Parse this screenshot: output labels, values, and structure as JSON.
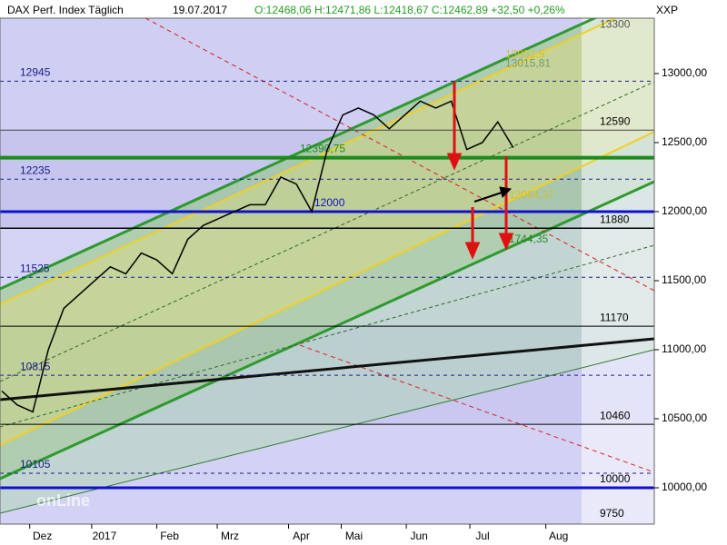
{
  "chart_data": {
    "type": "line",
    "title": "DAX Perf. Index Täglich",
    "date": "19.07.2017",
    "ohlc": "O:12468,06 H:12471,86 L:12418,67 C:12462,89 +32,50 +0,26%",
    "symbol": "XXP",
    "watermark": "onLine",
    "x": [
      0,
      1,
      2,
      3,
      4,
      5,
      6,
      7,
      8,
      9,
      10,
      11,
      12,
      13,
      14,
      15,
      16,
      17,
      18,
      19,
      20,
      21,
      22,
      23,
      24,
      25,
      26,
      27,
      28,
      29,
      30,
      31,
      32,
      33
    ],
    "series": [
      {
        "color": "#000000",
        "values": [
          10700,
          10600,
          10550,
          11000,
          11300,
          11400,
          11500,
          11600,
          11550,
          11700,
          11650,
          11550,
          11800,
          11900,
          11950,
          12000,
          12050,
          12050,
          12250,
          12200,
          12000,
          12450,
          12700,
          12750,
          12700,
          12600,
          12700,
          12800,
          12750,
          12800,
          12450,
          12500,
          12650,
          12462.89
        ]
      }
    ],
    "xlim": [
      0,
      42.1
    ],
    "xticks": [
      {
        "value": 1.8,
        "label": "Dez"
      },
      {
        "value": 5.8,
        "label": "2017"
      },
      {
        "value": 10,
        "label": "Feb"
      },
      {
        "value": 13.9,
        "label": "Mrz"
      },
      {
        "value": 18.5,
        "label": "Apr"
      },
      {
        "value": 21.9,
        "label": "Mai"
      },
      {
        "value": 26.1,
        "label": "Jun"
      },
      {
        "value": 30.2,
        "label": "Jul"
      },
      {
        "value": 35.1,
        "label": "Aug"
      }
    ],
    "ylim": [
      9737,
      13401
    ],
    "yticks": [
      {
        "value": 13000,
        "label": "13000,00"
      },
      {
        "value": 12500,
        "label": "12500,00"
      },
      {
        "value": 12000,
        "label": "12000,00"
      },
      {
        "value": 11500,
        "label": "11500,00"
      },
      {
        "value": 11000,
        "label": "11000,00"
      },
      {
        "value": 10500,
        "label": "10500,00"
      },
      {
        "value": 10000,
        "label": "10000,00"
      }
    ],
    "levels": [
      {
        "value": 12945,
        "label": "12945",
        "color": "#1a1a8c",
        "dash": true,
        "side": "left"
      },
      {
        "value": 12590,
        "label": "12590",
        "color": "#444444",
        "dash": false,
        "side": "right"
      },
      {
        "value": 12390.75,
        "label": "12390,75",
        "color": "#1e8a1e",
        "dash": false,
        "side": "mid",
        "width": 4
      },
      {
        "value": 12235,
        "label": "12235",
        "color": "#1a1a8c",
        "dash": true,
        "side": "left"
      },
      {
        "value": 12000,
        "label": "12000",
        "color": "#1010d0",
        "dash": false,
        "side": "mid",
        "width": 3
      },
      {
        "value": 11880,
        "label": "11880",
        "color": "#000000",
        "dash": false,
        "side": "right",
        "width": 1.5
      },
      {
        "value": 11525,
        "label": "11525",
        "color": "#1a1a8c",
        "dash": true,
        "side": "left"
      },
      {
        "value": 11170,
        "label": "11170",
        "color": "#000000",
        "dash": false,
        "side": "right"
      },
      {
        "value": 10815,
        "label": "10815",
        "color": "#1a1a8c",
        "dash": true,
        "side": "left"
      },
      {
        "value": 10460,
        "label": "10460",
        "color": "#000000",
        "dash": false,
        "side": "right"
      },
      {
        "value": 10105,
        "label": "10105",
        "color": "#1a1a8c",
        "dash": true,
        "side": "left"
      },
      {
        "value": 10000,
        "label": "10000",
        "color": "#1010d0",
        "dash": false,
        "side": "right",
        "width": 3
      },
      {
        "value": 9750,
        "label": "9750",
        "color": "#000000",
        "dash": false,
        "side": "right",
        "width": 0
      }
    ],
    "annotations": [
      {
        "value": 13300,
        "label": "13300",
        "color": "#555555"
      },
      {
        "value": 13082.5,
        "label": "13082,5",
        "color": "#d8c020"
      },
      {
        "value": 13015.81,
        "label": "13015,81",
        "color": "#7a9a6a"
      },
      {
        "value": 12064.37,
        "label": "12064,37",
        "color": "#d0c030"
      },
      {
        "value": 11744.35,
        "label": "11744,35",
        "color": "#2a8a2a"
      }
    ]
  }
}
